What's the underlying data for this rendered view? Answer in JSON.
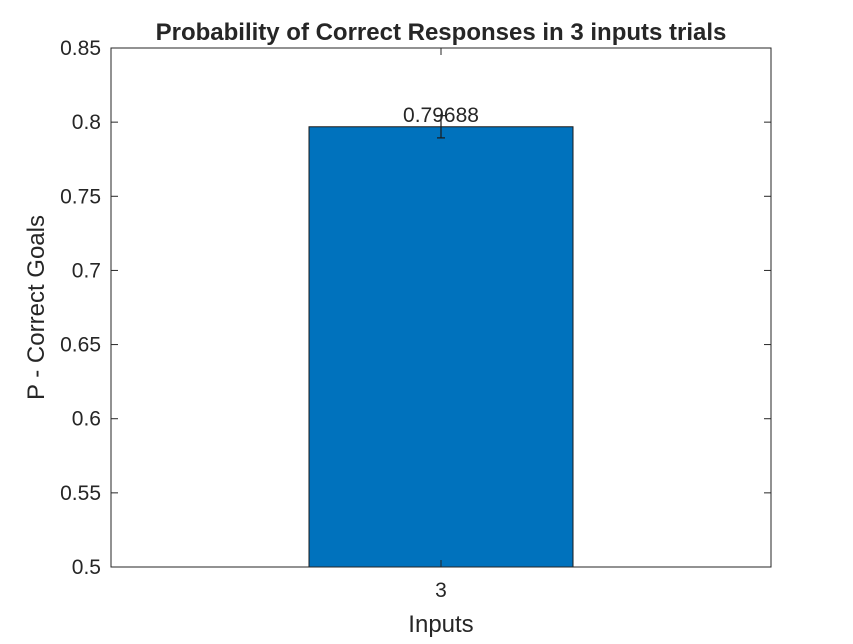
{
  "chart_data": {
    "type": "bar",
    "title": "Probability of Correct Responses in 3 inputs trials",
    "xlabel": "Inputs",
    "ylabel": "P - Correct Goals",
    "categories": [
      "3"
    ],
    "values": [
      0.79688
    ],
    "data_labels": [
      "0.79688"
    ],
    "error_bars": [
      0.0075
    ],
    "ylim": [
      0.5,
      0.85
    ],
    "yticks": [
      0.5,
      0.55,
      0.6,
      0.65,
      0.7,
      0.75,
      0.8,
      0.85
    ],
    "ytick_labels": [
      "0.5",
      "0.55",
      "0.6",
      "0.65",
      "0.7",
      "0.75",
      "0.8",
      "0.85"
    ],
    "bar_color": "#0072BD",
    "grid": false,
    "legend": "none"
  }
}
